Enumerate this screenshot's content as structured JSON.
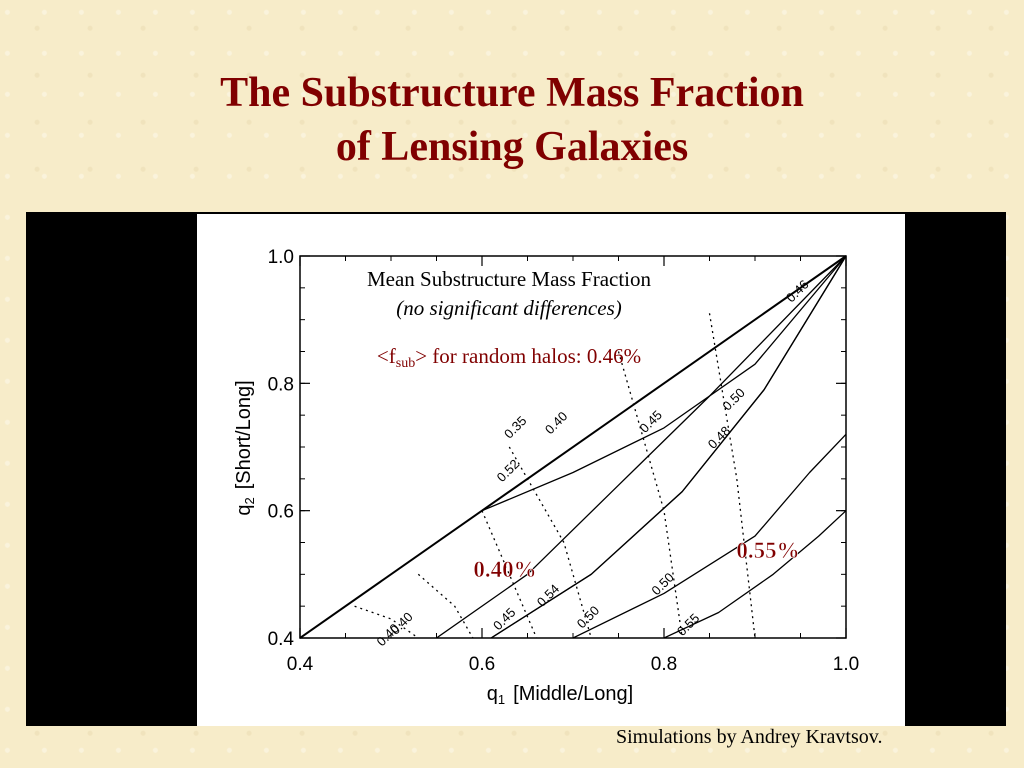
{
  "slide": {
    "title_line1": "The Substructure Mass Fraction",
    "title_line2": "of Lensing Galaxies",
    "credit": "Simulations by Andrey Kravtsov."
  },
  "chart_data": {
    "type": "contour",
    "xlabel_sym": "q",
    "xlabel_sub": "1",
    "xlabel_text": "[Middle/Long]",
    "ylabel_sym": "q",
    "ylabel_sub": "2",
    "ylabel_text": "[Short/Long]",
    "xlim": [
      0.4,
      1.0
    ],
    "ylim": [
      0.4,
      1.0
    ],
    "x_ticks": [
      "0.4",
      "0.6",
      "0.8",
      "1.0"
    ],
    "y_ticks": [
      "0.4",
      "0.6",
      "0.8",
      "1.0"
    ],
    "annotation_title": "Mean Substructure Mass Fraction",
    "annotation_subtitle": "(no significant differences)",
    "annotation_prefix": "<f",
    "annotation_sub": "sub",
    "annotation_suffix": "> for random halos: 0.46%",
    "callout_low": "0.40%",
    "callout_high": "0.55%",
    "solid_contours": [
      {
        "label": "0.35",
        "label_at": [
          0.64,
          0.726
        ],
        "points": [
          [
            0.6,
            0.6
          ],
          [
            0.7,
            0.66
          ],
          [
            0.8,
            0.73
          ],
          [
            0.9,
            0.83
          ],
          [
            1.0,
            1.0
          ]
        ]
      },
      {
        "label": "0.40",
        "label_at": [
          0.685,
          0.733
        ],
        "points": [
          [
            0.55,
            0.4
          ],
          [
            0.65,
            0.5
          ],
          [
            0.75,
            0.64
          ],
          [
            0.85,
            0.78
          ],
          [
            1.0,
            1.0
          ]
        ]
      },
      {
        "label": "0.45",
        "label_at": [
          0.628,
          0.425
        ],
        "points": [
          [
            0.61,
            0.4
          ],
          [
            0.72,
            0.5
          ],
          [
            0.82,
            0.63
          ],
          [
            0.91,
            0.79
          ],
          [
            1.0,
            1.0
          ]
        ]
      },
      {
        "label": "0.45",
        "label_at": [
          0.789,
          0.735
        ],
        "points": [
          [
            0.61,
            0.4
          ],
          [
            0.72,
            0.5
          ],
          [
            0.82,
            0.63
          ],
          [
            0.91,
            0.79
          ],
          [
            1.0,
            1.0
          ]
        ]
      },
      {
        "label": "0.50",
        "label_at": [
          0.72,
          0.428
        ],
        "points": [
          [
            0.7,
            0.4
          ],
          [
            0.8,
            0.47
          ],
          [
            0.9,
            0.56
          ],
          [
            0.96,
            0.66
          ],
          [
            1.0,
            0.72
          ]
        ]
      },
      {
        "label": "0.55",
        "label_at": [
          0.83,
          0.416
        ],
        "points": [
          [
            0.8,
            0.4
          ],
          [
            0.86,
            0.44
          ],
          [
            0.92,
            0.5
          ],
          [
            0.97,
            0.56
          ],
          [
            1.0,
            0.6
          ]
        ]
      },
      {
        "label": "0.46",
        "label_at": [
          0.95,
          0.94
        ],
        "points": []
      }
    ],
    "dotted_contours": [
      {
        "label": "0.40",
        "label_at": [
          0.515,
          0.418
        ],
        "points": [
          [
            0.46,
            0.45
          ],
          [
            0.5,
            0.43
          ],
          [
            0.53,
            0.4
          ]
        ]
      },
      {
        "label": "0.40",
        "label_at": [
          0.5,
          0.4
        ],
        "points": [
          [
            0.53,
            0.5
          ],
          [
            0.57,
            0.45
          ],
          [
            0.59,
            0.4
          ]
        ]
      },
      {
        "label": "0.52",
        "label_at": [
          0.632,
          0.658
        ],
        "points": [
          [
            0.6,
            0.6
          ],
          [
            0.63,
            0.5
          ],
          [
            0.66,
            0.4
          ]
        ]
      },
      {
        "label": "0.54",
        "label_at": [
          0.676,
          0.462
        ],
        "points": [
          [
            0.63,
            0.7
          ],
          [
            0.69,
            0.55
          ],
          [
            0.72,
            0.4
          ]
        ]
      },
      {
        "label": "0.50",
        "label_at": [
          0.802,
          0.48
        ],
        "points": [
          [
            0.75,
            0.85
          ],
          [
            0.8,
            0.6
          ],
          [
            0.82,
            0.4
          ]
        ]
      },
      {
        "label": "0.48",
        "label_at": [
          0.864,
          0.71
        ],
        "points": [
          [
            0.85,
            0.91
          ],
          [
            0.88,
            0.65
          ],
          [
            0.9,
            0.4
          ]
        ]
      },
      {
        "label": "0.50",
        "label_at": [
          0.88,
          0.77
        ],
        "points": []
      }
    ]
  }
}
